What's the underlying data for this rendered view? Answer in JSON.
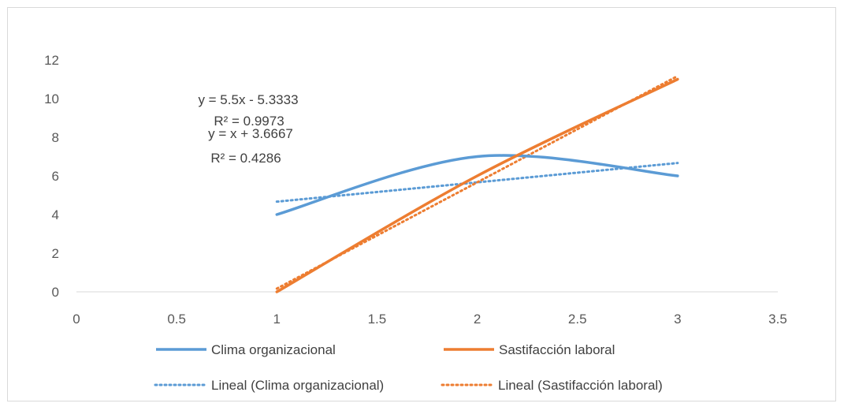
{
  "chart_data": {
    "type": "line",
    "x": [
      1,
      2,
      3
    ],
    "xlim": [
      0,
      3.5
    ],
    "ylim": [
      0,
      12
    ],
    "xticks": [
      "0",
      "0.5",
      "1",
      "1.5",
      "2",
      "2.5",
      "3",
      "3.5"
    ],
    "yticks": [
      "0",
      "2",
      "4",
      "6",
      "8",
      "10",
      "12"
    ],
    "series": [
      {
        "name": "Clima organizacional",
        "values": [
          4,
          7,
          6
        ],
        "color": "#5b9bd5",
        "style": "smooth"
      },
      {
        "name": "Sastifacción laboral",
        "values": [
          0,
          6,
          11
        ],
        "color": "#ed7d31",
        "style": "smooth"
      }
    ],
    "trendlines": [
      {
        "name": "Lineal (Clima organizacional)",
        "slope": 1,
        "intercept": 3.6667,
        "color": "#5b9bd5",
        "equation": "y = x + 3.6667",
        "r2": "R² = 0.4286"
      },
      {
        "name": "Lineal (Sastifacción laboral)",
        "slope": 5.5,
        "intercept": -5.3333,
        "color": "#ed7d31",
        "equation": "y = 5.5x - 5.3333",
        "r2": "R² = 0.9973"
      }
    ],
    "grid": false,
    "legend": "bottom"
  }
}
